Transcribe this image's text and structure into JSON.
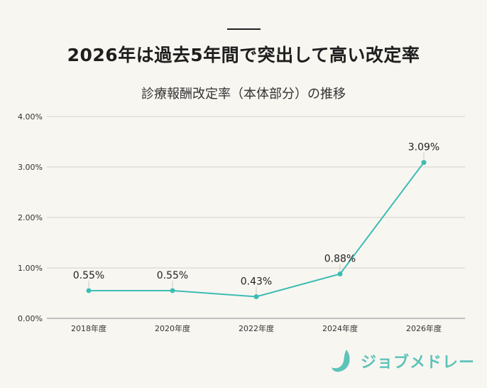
{
  "header": {
    "headline": "2026年は過去5年間で突出して高い改定率",
    "subtitle": "診療報酬改定率（本体部分）の推移"
  },
  "brand": {
    "name": "ジョブメドレー",
    "color": "#5ec3b9"
  },
  "chart_data": {
    "type": "line",
    "title": "診療報酬改定率（本体部分）の推移",
    "categories": [
      "2018年度",
      "2020年度",
      "2022年度",
      "2024年度",
      "2026年度"
    ],
    "series": [
      {
        "values": [
          0.55,
          0.55,
          0.43,
          0.88,
          3.09
        ],
        "labels": [
          "0.55%",
          "0.55%",
          "0.43%",
          "0.88%",
          "3.09%"
        ],
        "color": "#3dbdb3"
      }
    ],
    "y_ticks": [
      "0.00%",
      "1.00%",
      "2.00%",
      "3.00%",
      "4.00%"
    ],
    "ylim": [
      0,
      4
    ],
    "grid": true,
    "legend": "none"
  }
}
